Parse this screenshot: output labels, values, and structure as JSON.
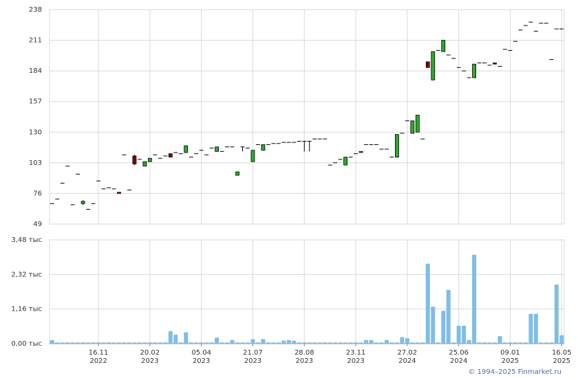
{
  "chart_data": {
    "type": "candlestick",
    "categories": [
      null,
      null,
      null,
      null,
      null,
      null,
      null,
      null,
      null,
      "16.11\n2022",
      null,
      null,
      null,
      null,
      null,
      null,
      null,
      null,
      null,
      "20.02\n2023",
      null,
      null,
      null,
      null,
      null,
      null,
      null,
      null,
      null,
      "05.04\n2023",
      null,
      null,
      null,
      null,
      null,
      null,
      null,
      null,
      null,
      "21.07\n2023",
      null,
      null,
      null,
      null,
      null,
      null,
      null,
      null,
      null,
      "28.08\n2023",
      null,
      null,
      null,
      null,
      null,
      null,
      null,
      null,
      null,
      "23.11\n2023",
      null,
      null,
      null,
      null,
      null,
      null,
      null,
      null,
      null,
      "27.02\n2024",
      null,
      null,
      null,
      null,
      null,
      null,
      null,
      null,
      null,
      "25.06\n2024",
      null,
      null,
      null,
      null,
      null,
      null,
      null,
      null,
      null,
      "09.01\n2025",
      null,
      null,
      null,
      null,
      null,
      null,
      null,
      null,
      null,
      "16.05\n2025"
    ],
    "open": [
      67,
      71,
      85,
      100,
      66,
      93,
      67,
      62,
      67,
      87,
      80,
      81,
      80,
      77,
      110,
      79,
      109,
      106,
      100,
      104,
      110,
      107,
      109,
      111,
      112,
      111,
      112,
      108,
      111,
      114,
      110,
      116,
      113,
      113,
      117,
      117,
      92,
      117,
      116,
      104,
      119,
      114,
      119,
      120,
      120,
      121,
      121,
      121,
      122,
      122,
      122,
      124,
      124,
      124,
      101,
      103,
      106,
      101,
      108,
      111,
      112,
      119,
      119,
      119,
      115,
      115,
      108,
      108,
      129,
      140,
      129,
      130,
      124,
      192,
      176,
      202,
      201,
      198,
      195,
      187,
      184,
      178,
      178,
      191,
      191,
      189,
      191,
      188,
      203,
      202,
      210,
      220,
      224,
      227,
      219,
      226,
      226,
      194,
      221,
      221
    ],
    "high": [
      67,
      71,
      85,
      100,
      66,
      93,
      70,
      62,
      67,
      87,
      80,
      81,
      80,
      77,
      110,
      79,
      110,
      106,
      104,
      107,
      110,
      107,
      109,
      111,
      112,
      111,
      118,
      108,
      111,
      114,
      110,
      116,
      117,
      113,
      117,
      117,
      95,
      117,
      116,
      114,
      119,
      119,
      119,
      120,
      120,
      121,
      121,
      121,
      122,
      122,
      122,
      124,
      124,
      124,
      101,
      103,
      106,
      108,
      108,
      111,
      113,
      119,
      119,
      119,
      115,
      115,
      108,
      128,
      129,
      140,
      140,
      145,
      124,
      192,
      201,
      202,
      211,
      198,
      195,
      187,
      184,
      178,
      190,
      191,
      191,
      189,
      191,
      188,
      203,
      202,
      210,
      220,
      224,
      227,
      219,
      226,
      226,
      194,
      221,
      221
    ],
    "low": [
      67,
      71,
      85,
      100,
      66,
      93,
      66,
      62,
      67,
      87,
      80,
      81,
      80,
      76,
      110,
      79,
      101,
      106,
      100,
      104,
      110,
      107,
      109,
      108,
      112,
      111,
      112,
      108,
      111,
      114,
      110,
      116,
      113,
      113,
      117,
      117,
      92,
      113,
      116,
      104,
      119,
      114,
      119,
      120,
      120,
      121,
      121,
      121,
      122,
      113,
      113,
      124,
      124,
      124,
      101,
      103,
      106,
      101,
      108,
      111,
      112,
      119,
      119,
      119,
      115,
      115,
      108,
      108,
      129,
      140,
      129,
      130,
      124,
      187,
      176,
      202,
      201,
      198,
      195,
      187,
      184,
      178,
      178,
      191,
      191,
      189,
      190,
      188,
      203,
      202,
      210,
      220,
      224,
      227,
      219,
      226,
      226,
      194,
      221,
      221
    ],
    "close": [
      67,
      71,
      85,
      100,
      66,
      93,
      69,
      62,
      67,
      87,
      80,
      81,
      80,
      76,
      110,
      79,
      102,
      106,
      104,
      107,
      110,
      107,
      109,
      108,
      112,
      111,
      118,
      108,
      111,
      114,
      110,
      116,
      117,
      113,
      117,
      117,
      95,
      117,
      116,
      114,
      119,
      119,
      119,
      120,
      120,
      121,
      121,
      121,
      122,
      122,
      122,
      124,
      124,
      124,
      101,
      103,
      106,
      108,
      108,
      111,
      113,
      119,
      119,
      119,
      115,
      115,
      108,
      128,
      129,
      140,
      140,
      145,
      124,
      187,
      201,
      202,
      211,
      198,
      195,
      187,
      184,
      178,
      190,
      191,
      191,
      189,
      190,
      188,
      203,
      202,
      210,
      220,
      224,
      227,
      219,
      226,
      226,
      194,
      221,
      221
    ],
    "up_color": "#2eaa2e",
    "down_color": "#8b0000",
    "flat_color": "#000000",
    "ylim": [
      49,
      238
    ],
    "yticks": [
      49,
      76,
      103,
      130,
      157,
      184,
      211,
      238
    ],
    "grid": true,
    "volume": {
      "type": "bar",
      "color": "#7fbde9",
      "values": [
        0.12,
        0.04,
        0.04,
        0.04,
        0.04,
        0.04,
        0.04,
        0.04,
        0.04,
        0.04,
        0.04,
        0.04,
        0.04,
        0.04,
        0.04,
        0.04,
        0.04,
        0.04,
        0.04,
        0.04,
        0.04,
        0.04,
        0.04,
        0.42,
        0.3,
        0.04,
        0.38,
        0.04,
        0.04,
        0.04,
        0.04,
        0.04,
        0.2,
        0.04,
        0.04,
        0.12,
        0.04,
        0.04,
        0.04,
        0.15,
        0.04,
        0.15,
        0.04,
        0.04,
        0.04,
        0.1,
        0.12,
        0.1,
        0.04,
        0.04,
        0.04,
        0.04,
        0.04,
        0.04,
        0.04,
        0.04,
        0.04,
        0.04,
        0.04,
        0.04,
        0.04,
        0.12,
        0.12,
        0.04,
        0.04,
        0.12,
        0.04,
        0.04,
        0.22,
        0.18,
        0.04,
        0.04,
        0.04,
        2.68,
        1.24,
        0.04,
        1.1,
        1.8,
        0.04,
        0.6,
        0.6,
        0.12,
        2.98,
        0.04,
        0.04,
        0.04,
        0.04,
        0.25,
        0.04,
        0.04,
        0.04,
        0.04,
        0.04,
        1.0,
        1.0,
        0.04,
        0.04,
        0.04,
        1.98,
        0.28
      ],
      "ylim": [
        0,
        3.48
      ],
      "yticks": [
        {
          "value": 0,
          "label": "0,00 тыс"
        },
        {
          "value": 1.16,
          "label": "1,16 тыс"
        },
        {
          "value": 2.32,
          "label": "2,32 тыс"
        },
        {
          "value": 3.48,
          "label": "3,48 тыс"
        }
      ]
    },
    "credit": "© 1994–2025 Finmarket.ru"
  }
}
